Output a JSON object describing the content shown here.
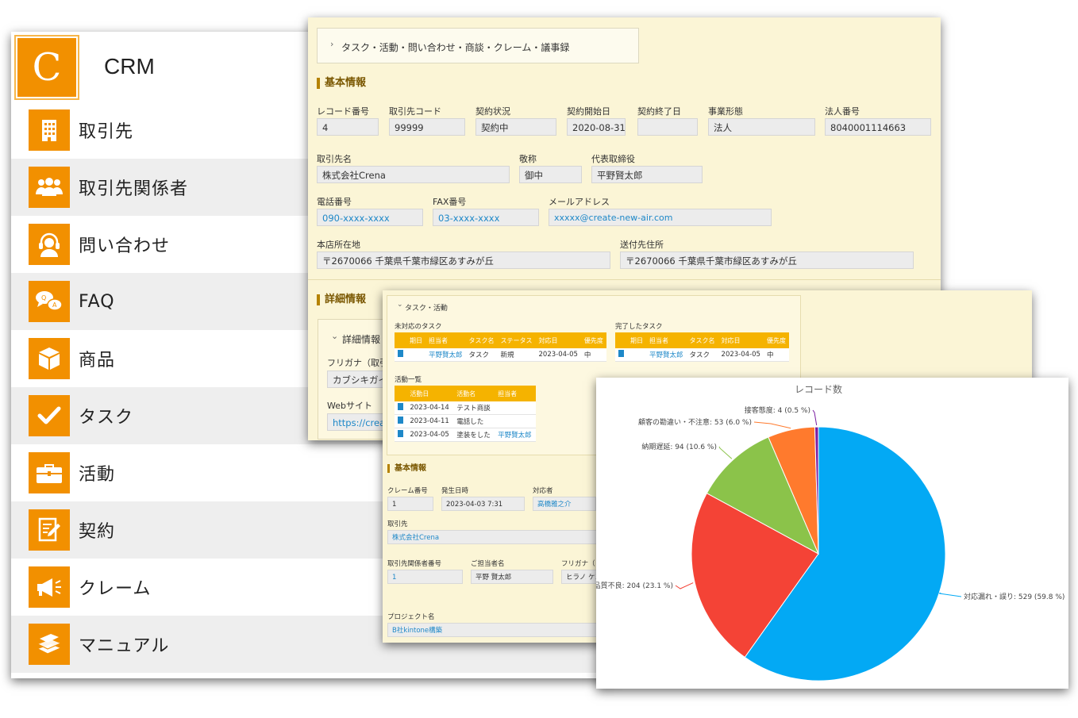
{
  "app": {
    "logo_letter": "C",
    "title": "CRM",
    "brand_color": "#f29000"
  },
  "sidebar": {
    "items": [
      {
        "label": "取引先",
        "icon": "building-icon"
      },
      {
        "label": "取引先関係者",
        "icon": "people-icon"
      },
      {
        "label": "問い合わせ",
        "icon": "headset-icon"
      },
      {
        "label": "FAQ",
        "icon": "qa-bubbles-icon"
      },
      {
        "label": "商品",
        "icon": "box-icon"
      },
      {
        "label": "タスク",
        "icon": "check-icon"
      },
      {
        "label": "活動",
        "icon": "briefcase-icon"
      },
      {
        "label": "契約",
        "icon": "contract-icon"
      },
      {
        "label": "クレーム",
        "icon": "megaphone-icon"
      },
      {
        "label": "マニュアル",
        "icon": "books-icon"
      }
    ]
  },
  "record": {
    "breadcrumb": "タスク・活動・問い合わせ・商談・クレーム・議事録",
    "basic_title": "基本情報",
    "fields": {
      "record_no": {
        "label": "レコード番号",
        "value": "4"
      },
      "client_code": {
        "label": "取引先コード",
        "value": "99999"
      },
      "contract_status": {
        "label": "契約状況",
        "value": "契約中"
      },
      "contract_start": {
        "label": "契約開始日",
        "value": "2020-08-31"
      },
      "contract_end": {
        "label": "契約終了日",
        "value": ""
      },
      "business_type": {
        "label": "事業形態",
        "value": "法人"
      },
      "corp_no": {
        "label": "法人番号",
        "value": "8040001114663"
      },
      "client_name": {
        "label": "取引先名",
        "value": "株式会社Crena"
      },
      "honorific": {
        "label": "敬称",
        "value": "御中"
      },
      "ceo": {
        "label": "代表取締役",
        "value": "平野賢太郎"
      },
      "phone": {
        "label": "電話番号",
        "value": "090-xxxx-xxxx"
      },
      "fax": {
        "label": "FAX番号",
        "value": "03-xxxx-xxxx"
      },
      "email": {
        "label": "メールアドレス",
        "value": "xxxxx@create-new-air.com"
      },
      "hq_address": {
        "label": "本店所在地",
        "value": "〒2670066 千葉県千葉市緑区あすみが丘"
      },
      "ship_address": {
        "label": "送付先住所",
        "value": "〒2670066 千葉県千葉市緑区あすみが丘"
      }
    },
    "detail_title": "詳細情報",
    "detail_toggle": "詳細情報",
    "furigana_label": "フリガナ（取引",
    "furigana_value": "カブシキガイ",
    "website_label": "Webサイト",
    "website_value": "https://creat"
  },
  "claim": {
    "toggle": "タスク・活動",
    "open_tasks": {
      "title": "未対応のタスク",
      "headers": [
        "",
        "期日",
        "担当者",
        "タスク名",
        "ステータス",
        "対応日",
        "優先度"
      ],
      "rows": [
        {
          "due": "",
          "owner": "平野賢太郎",
          "task": "タスク",
          "status": "新規",
          "date": "2023-04-05",
          "priority": "中"
        }
      ]
    },
    "done_tasks": {
      "title": "完了したタスク",
      "headers": [
        "",
        "期日",
        "担当者",
        "タスク名",
        "対応日",
        "優先度"
      ],
      "rows": [
        {
          "due": "",
          "owner": "平野賢太郎",
          "task": "タスク",
          "date": "2023-04-05",
          "priority": "中"
        }
      ]
    },
    "activities": {
      "title": "活動一覧",
      "headers": [
        "",
        "活動日",
        "活動名",
        "担当者"
      ],
      "rows": [
        {
          "date": "2023-04-14",
          "name": "テスト商談",
          "owner": ""
        },
        {
          "date": "2023-04-11",
          "name": "電話した",
          "owner": ""
        },
        {
          "date": "2023-04-05",
          "name": "塗装をした",
          "owner": "平野賢太郎"
        }
      ]
    },
    "basic_title": "基本情報",
    "fields": {
      "claim_no": {
        "label": "クレーム番号",
        "value": "1"
      },
      "occurred": {
        "label": "発生日時",
        "value": "2023-04-03 7:31"
      },
      "handler": {
        "label": "対応者",
        "value": "高橋雅之介"
      },
      "client": {
        "label": "取引先",
        "value": "株式会社Crena"
      },
      "contact_no": {
        "label": "取引先関係者番号",
        "value": "1"
      },
      "contact_name": {
        "label": "ご担当者名",
        "value": "平野 賢太郎"
      },
      "contact_kana": {
        "label": "フリガナ（",
        "value": "ヒラノ ケン"
      },
      "project": {
        "label": "プロジェクト名",
        "value": "B社kintone構築"
      }
    }
  },
  "chart_data": {
    "type": "pie",
    "title": "レコード数",
    "slices": [
      {
        "label": "対応漏れ・誤り",
        "value": 529,
        "percent": 59.8,
        "color": "#03a9f4"
      },
      {
        "label": "品質不良",
        "value": 204,
        "percent": 23.1,
        "color": "#f44336"
      },
      {
        "label": "納期遅延",
        "value": 94,
        "percent": 10.6,
        "color": "#8bc34a"
      },
      {
        "label": "顧客の勘違い・不注意",
        "value": 53,
        "percent": 6.0,
        "color": "#ff7a2d"
      },
      {
        "label": "接客態度",
        "value": 4,
        "percent": 0.5,
        "color": "#7b1fa2"
      }
    ]
  }
}
